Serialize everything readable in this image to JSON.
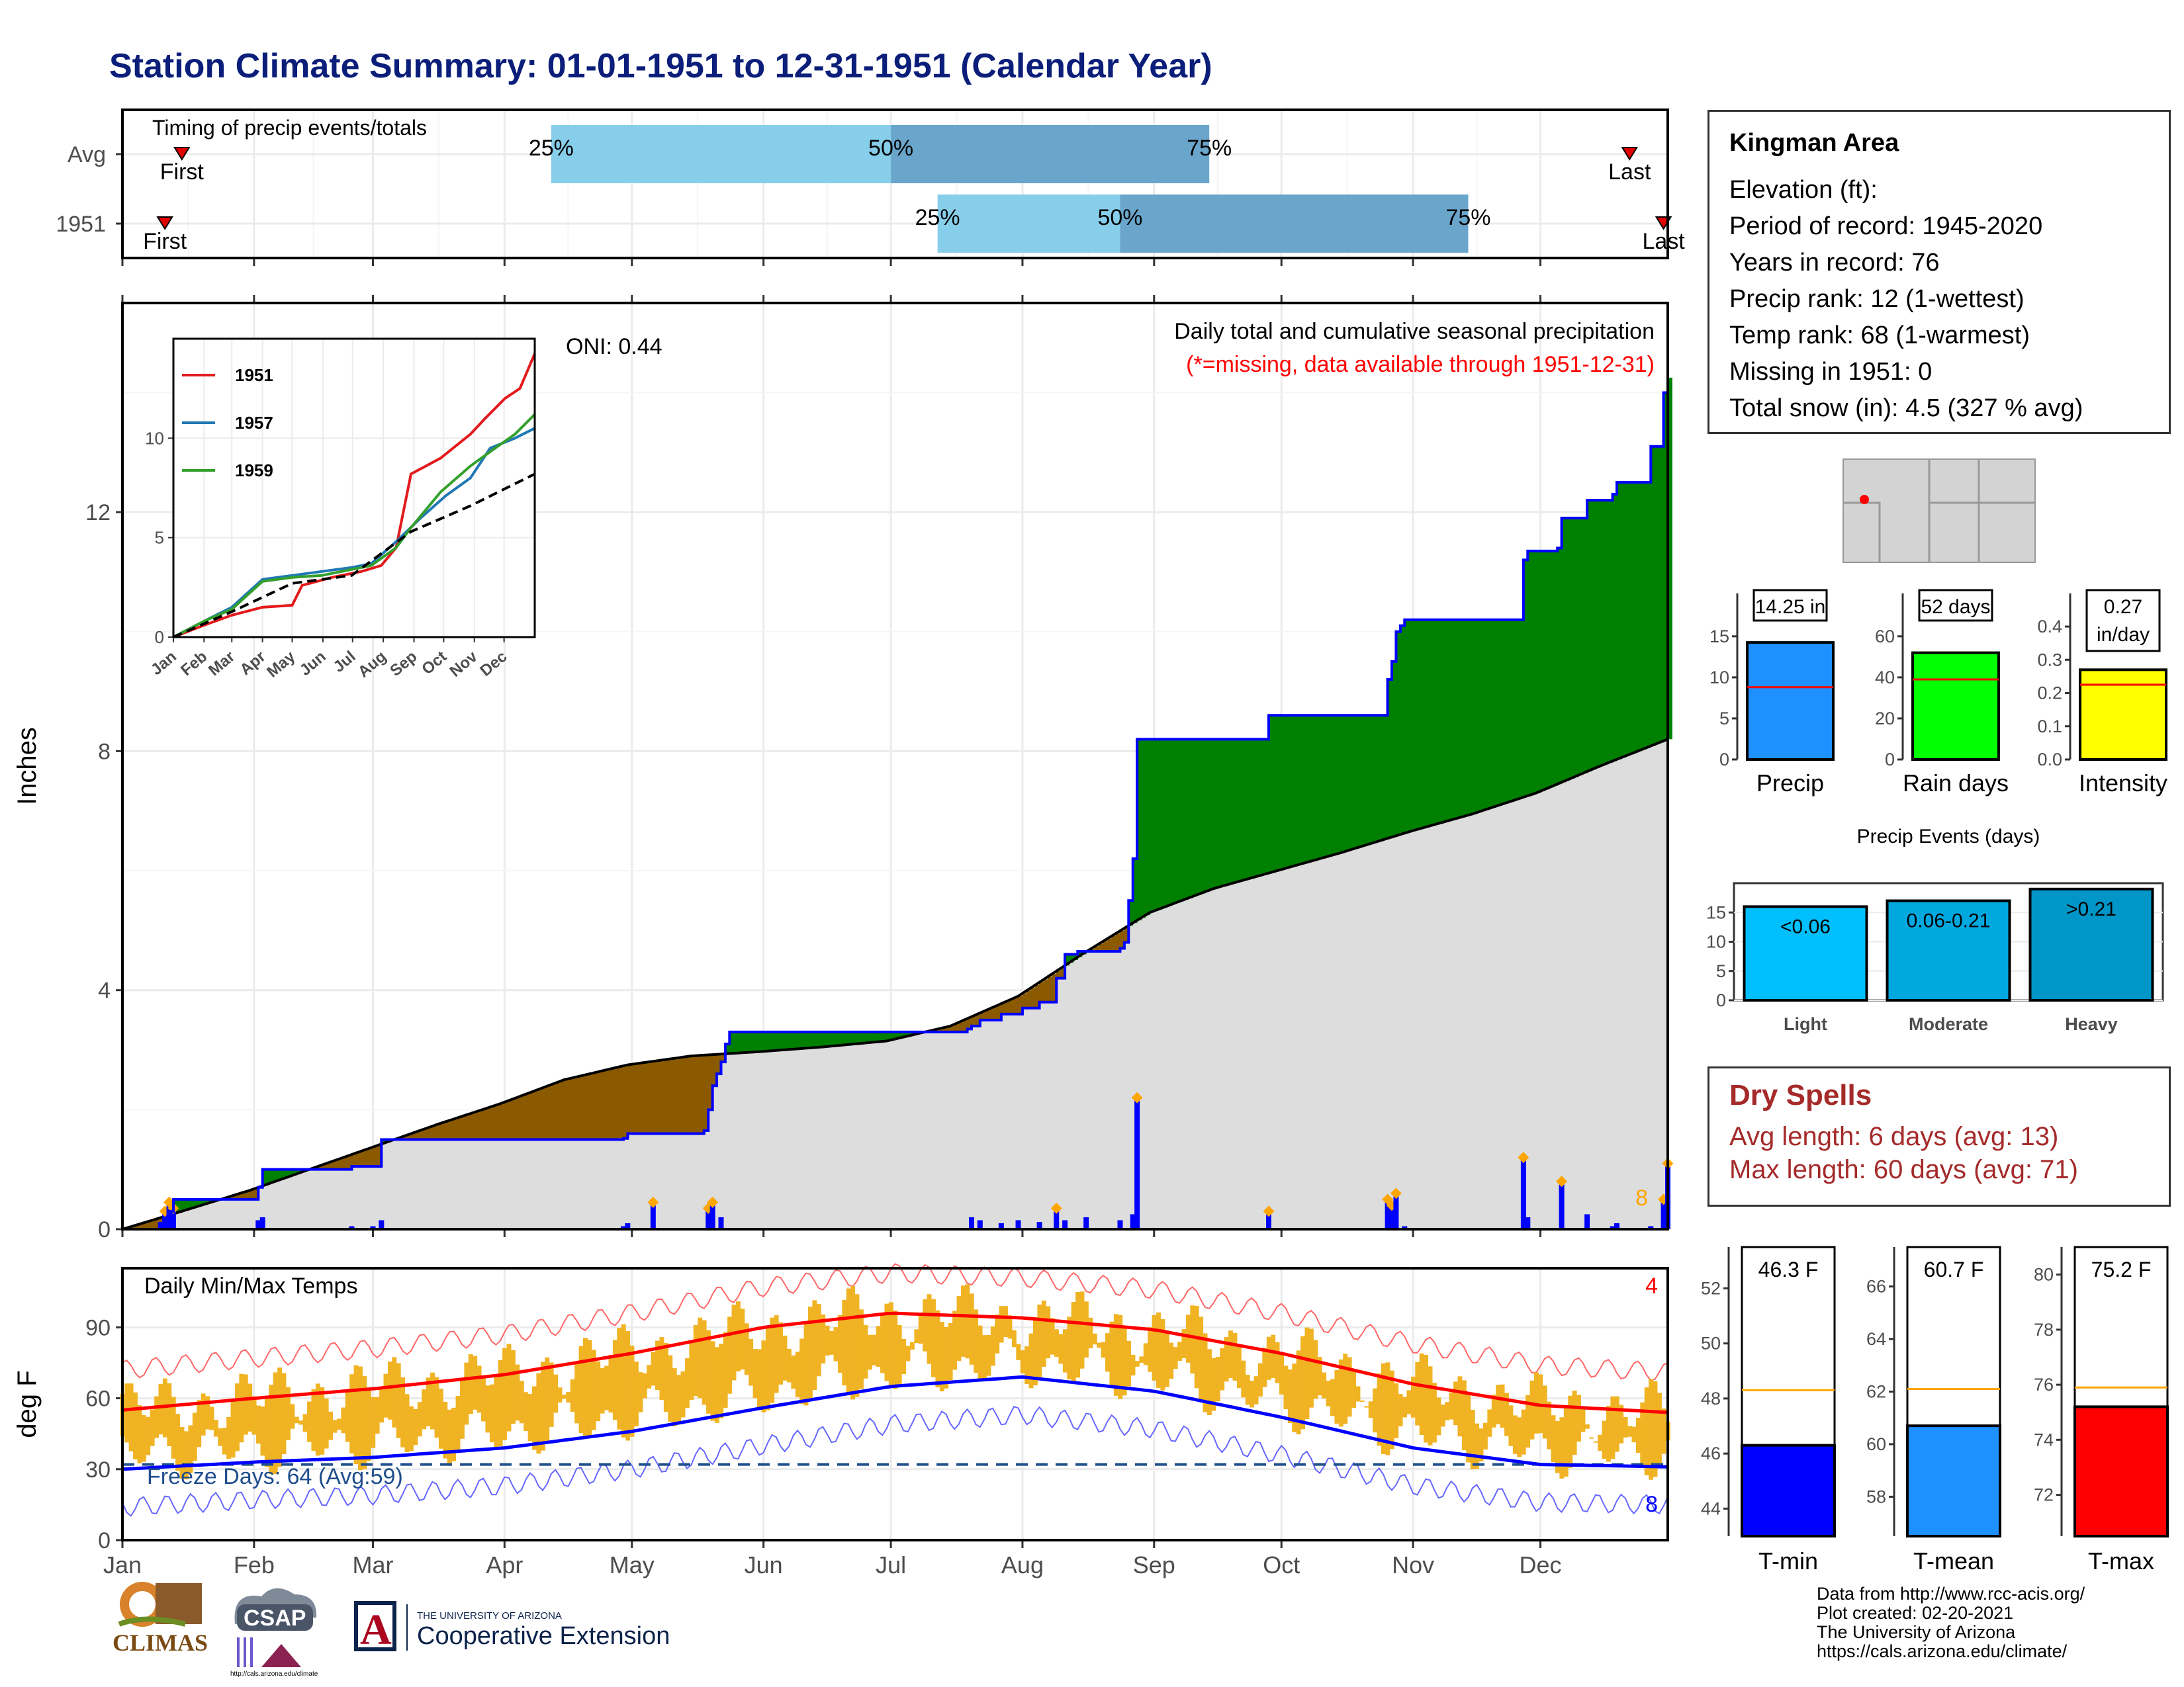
{
  "title": "Station Climate Summary: 01-01-1951 to 12-31-1951 (Calendar Year)",
  "timing": {
    "title": "Timing of precip events/totals",
    "rows": [
      {
        "label": "Avg",
        "first_label": "First",
        "last_label": "Last",
        "first_doy": 15,
        "last_doy": 356,
        "p25": 102,
        "p50": 182,
        "p75": 257,
        "q_labels": [
          "25%",
          "50%",
          "75%"
        ]
      },
      {
        "label": "1951",
        "first_label": "First",
        "last_label": "Last",
        "first_doy": 11,
        "last_doy": 364,
        "p25": 193,
        "p50": 236,
        "p75": 318,
        "q_labels": [
          "25%",
          "50%",
          "75%"
        ]
      }
    ],
    "colors": {
      "light": "#87ceeb",
      "dark": "#6aa6cc",
      "marker": "#e00000"
    }
  },
  "precip": {
    "ylabel": "Inches",
    "yticks": [
      0,
      4,
      8,
      12
    ],
    "ylim": [
      0,
      15.5
    ],
    "legend_title": "Daily total and cumulative seasonal precipitation",
    "missing_note": "(*=missing, data available through 1951-12-31)",
    "oni": "ONI: 0.44",
    "corner_count": "8",
    "colors": {
      "above": "#008000",
      "below": "#8b5a00",
      "avg_fill": "#dddddd",
      "cum_line": "#0000ff",
      "bars": "#0000ff",
      "extreme": "#ffa500"
    }
  },
  "inset": {
    "yticks": [
      0,
      5,
      10
    ],
    "months": [
      "Jan",
      "Feb",
      "Mar",
      "Apr",
      "May",
      "Jun",
      "Jul",
      "Aug",
      "Sep",
      "Oct",
      "Nov",
      "Dec"
    ],
    "series": [
      {
        "name": "1951",
        "color": "#e31a1c"
      },
      {
        "name": "1957",
        "color": "#1f78b4"
      },
      {
        "name": "1959",
        "color": "#33a02c"
      }
    ]
  },
  "temps": {
    "title": "Daily Min/Max Temps",
    "ylabel": "deg F",
    "yticks": [
      0,
      30,
      60,
      90
    ],
    "ylim": [
      0,
      115
    ],
    "freeze_label": "Freeze Days: 64 (Avg:59)",
    "freeze_line": 32,
    "record_high_count": "4",
    "record_low_count": "8",
    "colors": {
      "bars": "#f0b323",
      "avg_max": "#ff0000",
      "avg_min": "#0000ff",
      "rec_max": "#ff6666",
      "rec_min": "#6666ff",
      "freeze": "#1f4e8c"
    }
  },
  "months": [
    "Jan",
    "Feb",
    "Mar",
    "Apr",
    "May",
    "Jun",
    "Jul",
    "Aug",
    "Sep",
    "Oct",
    "Nov",
    "Dec"
  ],
  "info": {
    "station": "Kingman Area",
    "lines": [
      "Elevation (ft):",
      "Period of record: 1945-2020",
      "Years in record: 76",
      "Precip rank: 12 (1-wettest)",
      "Temp rank: 68 (1-warmest)",
      "Missing in 1951: 0",
      "Total snow (in): 4.5 (327 % avg)"
    ]
  },
  "summary_bars": [
    {
      "label": "Precip",
      "value_label": "14.25 in",
      "value": 14.25,
      "avg": 8.8,
      "ymax": 17,
      "ticks": [
        0,
        5,
        10,
        15
      ],
      "color": "#1e90ff"
    },
    {
      "label": "Rain days",
      "value_label": "52 days",
      "value": 52,
      "avg": 39,
      "ymax": 68,
      "ticks": [
        0,
        20,
        40,
        60
      ],
      "color": "#00ff00"
    },
    {
      "label": "Intensity",
      "value_label": "0.27 in/day",
      "value": 0.27,
      "avg": 0.225,
      "ymax": 0.42,
      "ticks": [
        "0.0",
        "0.1",
        "0.2",
        "0.3",
        "0.4"
      ],
      "color": "#ffff00"
    }
  ],
  "events": {
    "title": "Precip Events (days)",
    "ticks": [
      0,
      5,
      10,
      15
    ],
    "ymax": 20,
    "bars": [
      {
        "label": "Light",
        "range": "<0.06",
        "value": 16,
        "color": "#00bfff"
      },
      {
        "label": "Moderate",
        "range": "0.06-0.21",
        "value": 17,
        "color": "#00a8e0"
      },
      {
        "label": "Heavy",
        "range": ">0.21",
        "value": 19,
        "color": "#0096c7"
      }
    ]
  },
  "dry_spells": {
    "title": "Dry Spells",
    "avg": "Avg length: 6 days (avg: 13)",
    "max": "Max length: 60 days (avg: 71)"
  },
  "temp_bars": [
    {
      "label": "T-min",
      "value_label": "46.3 F",
      "value": 46.3,
      "avg": 48.3,
      "ylim": [
        43,
        53.5
      ],
      "ticks": [
        44,
        46,
        48,
        50,
        52
      ],
      "color": "#0000ff"
    },
    {
      "label": "T-mean",
      "value_label": "60.7 F",
      "value": 60.7,
      "avg": 62.1,
      "ylim": [
        56.5,
        67.5
      ],
      "ticks": [
        58,
        60,
        62,
        64,
        66
      ],
      "color": "#1e90ff"
    },
    {
      "label": "T-max",
      "value_label": "75.2 F",
      "value": 75.2,
      "avg": 75.9,
      "ylim": [
        70.5,
        81
      ],
      "ticks": [
        72,
        74,
        76,
        78,
        80
      ],
      "color": "#ff0000"
    }
  ],
  "credits": [
    "Data from http://www.rcc-acis.org/",
    "Plot created: 02-20-2021",
    "The University of Arizona",
    "https://cals.arizona.edu/climate/"
  ],
  "logos": {
    "climas": "CLIMAS",
    "csap": "CSAP",
    "csap_url": "http://cals.arizona.edu/climate",
    "ua_small": "THE UNIVERSITY OF ARIZONA",
    "ua_big": "Cooperative Extension",
    "ua_mark": "A"
  },
  "chart_data": [
    {
      "type": "step-area",
      "title": "Daily total and cumulative seasonal precipitation",
      "ylabel": "Inches",
      "ylim": [
        0,
        15.5
      ],
      "x": "day of year 1951",
      "cumulative_1951": [
        [
          1,
          0
        ],
        [
          10,
          0.1
        ],
        [
          12,
          0.3
        ],
        [
          13,
          0.5
        ],
        [
          32,
          0.5
        ],
        [
          33,
          0.7
        ],
        [
          34,
          1.0
        ],
        [
          55,
          1.05
        ],
        [
          62,
          1.5
        ],
        [
          119,
          1.52
        ],
        [
          120,
          1.6
        ],
        [
          138,
          1.65
        ],
        [
          139,
          2.0
        ],
        [
          140,
          2.4
        ],
        [
          141,
          2.6
        ],
        [
          142,
          2.8
        ],
        [
          143,
          3.1
        ],
        [
          144,
          3.3
        ],
        [
          200,
          3.35
        ],
        [
          201,
          3.4
        ],
        [
          203,
          3.5
        ],
        [
          208,
          3.6
        ],
        [
          213,
          3.7
        ],
        [
          217,
          3.8
        ],
        [
          221,
          4.2
        ],
        [
          223,
          4.6
        ],
        [
          226,
          4.65
        ],
        [
          236,
          4.7
        ],
        [
          237,
          4.8
        ],
        [
          238,
          5.5
        ],
        [
          239,
          6.2
        ],
        [
          240,
          8.2
        ],
        [
          270,
          8.2
        ],
        [
          271,
          8.6
        ],
        [
          298,
          8.6
        ],
        [
          299,
          9.2
        ],
        [
          300,
          9.5
        ],
        [
          301,
          10.0
        ],
        [
          302,
          10.1
        ],
        [
          303,
          10.2
        ],
        [
          330,
          10.2
        ],
        [
          331,
          11.2
        ],
        [
          332,
          11.35
        ],
        [
          339,
          11.4
        ],
        [
          340,
          11.9
        ],
        [
          346,
          12.2
        ],
        [
          352,
          12.3
        ],
        [
          353,
          12.5
        ],
        [
          360,
          12.5
        ],
        [
          361,
          13.1
        ],
        [
          364,
          14.0
        ],
        [
          365,
          14.25
        ]
      ],
      "average_cumulative": [
        [
          1,
          0
        ],
        [
          15,
          0.3
        ],
        [
          31,
          0.65
        ],
        [
          45,
          1.0
        ],
        [
          59,
          1.35
        ],
        [
          75,
          1.75
        ],
        [
          90,
          2.1
        ],
        [
          105,
          2.5
        ],
        [
          120,
          2.75
        ],
        [
          135,
          2.9
        ],
        [
          151,
          2.97
        ],
        [
          166,
          3.05
        ],
        [
          181,
          3.15
        ],
        [
          196,
          3.4
        ],
        [
          212,
          3.9
        ],
        [
          227,
          4.6
        ],
        [
          243,
          5.3
        ],
        [
          258,
          5.7
        ],
        [
          273,
          6.0
        ],
        [
          288,
          6.3
        ],
        [
          304,
          6.65
        ],
        [
          319,
          6.95
        ],
        [
          334,
          7.3
        ],
        [
          349,
          7.75
        ],
        [
          365,
          8.2
        ]
      ],
      "daily_bars": [
        [
          10,
          0.12
        ],
        [
          11,
          0.3
        ],
        [
          12,
          0.45
        ],
        [
          13,
          0.35
        ],
        [
          33,
          0.15
        ],
        [
          34,
          0.2
        ],
        [
          55,
          0.05
        ],
        [
          60,
          0.05
        ],
        [
          62,
          0.15
        ],
        [
          119,
          0.05
        ],
        [
          120,
          0.1
        ],
        [
          126,
          0.45
        ],
        [
          139,
          0.35
        ],
        [
          140,
          0.45
        ],
        [
          142,
          0.2
        ],
        [
          201,
          0.2
        ],
        [
          203,
          0.15
        ],
        [
          208,
          0.1
        ],
        [
          212,
          0.15
        ],
        [
          217,
          0.12
        ],
        [
          221,
          0.35
        ],
        [
          223,
          0.15
        ],
        [
          228,
          0.2
        ],
        [
          236,
          0.15
        ],
        [
          239,
          0.25
        ],
        [
          240,
          2.2
        ],
        [
          271,
          0.3
        ],
        [
          299,
          0.5
        ],
        [
          300,
          0.4
        ],
        [
          301,
          0.6
        ],
        [
          303,
          0.05
        ],
        [
          331,
          1.2
        ],
        [
          332,
          0.2
        ],
        [
          340,
          0.8
        ],
        [
          346,
          0.25
        ],
        [
          352,
          0.05
        ],
        [
          353,
          0.1
        ],
        [
          361,
          0.05
        ],
        [
          364,
          0.5
        ],
        [
          365,
          1.1
        ]
      ]
    },
    {
      "type": "line",
      "title": "",
      "x": "month",
      "ylim": [
        0,
        15
      ],
      "series": [
        {
          "name": "1951",
          "values": [
            [
              0,
              0
            ],
            [
              31,
              0.6
            ],
            [
              59,
              1.1
            ],
            [
              90,
              1.5
            ],
            [
              120,
              1.6
            ],
            [
              130,
              2.6
            ],
            [
              160,
              3.0
            ],
            [
              190,
              3.3
            ],
            [
              210,
              3.6
            ],
            [
              225,
              4.5
            ],
            [
              240,
              8.2
            ],
            [
              270,
              9.0
            ],
            [
              300,
              10.2
            ],
            [
              315,
              11.0
            ],
            [
              335,
              12.0
            ],
            [
              350,
              12.5
            ],
            [
              365,
              14.25
            ]
          ]
        },
        {
          "name": "1957",
          "values": [
            [
              0,
              0
            ],
            [
              31,
              0.8
            ],
            [
              59,
              1.5
            ],
            [
              90,
              2.9
            ],
            [
              120,
              3.1
            ],
            [
              150,
              3.3
            ],
            [
              180,
              3.5
            ],
            [
              200,
              3.7
            ],
            [
              225,
              4.8
            ],
            [
              250,
              6.0
            ],
            [
              275,
              7.1
            ],
            [
              300,
              8.0
            ],
            [
              320,
              9.5
            ],
            [
              345,
              10.0
            ],
            [
              365,
              10.5
            ]
          ]
        },
        {
          "name": "1959",
          "values": [
            [
              0,
              0
            ],
            [
              31,
              0.8
            ],
            [
              59,
              1.4
            ],
            [
              90,
              2.8
            ],
            [
              120,
              3.0
            ],
            [
              150,
              3.1
            ],
            [
              180,
              3.4
            ],
            [
              200,
              3.6
            ],
            [
              225,
              4.5
            ],
            [
              240,
              5.5
            ],
            [
              270,
              7.3
            ],
            [
              300,
              8.6
            ],
            [
              325,
              9.5
            ],
            [
              345,
              10.2
            ],
            [
              365,
              11.2
            ]
          ]
        },
        {
          "name": "",
          "values": [
            [
              0,
              0
            ],
            [
              60,
              1.3
            ],
            [
              120,
              2.7
            ],
            [
              180,
              3.1
            ],
            [
              240,
              5.3
            ],
            [
              300,
              6.6
            ],
            [
              365,
              8.2
            ]
          ]
        }
      ]
    },
    {
      "type": "bar",
      "title": "Daily Min/Max Temps",
      "ylabel": "deg F",
      "ylim": [
        0,
        115
      ],
      "x": "day of year 1951",
      "freeze_threshold": 32,
      "avg_max_by_month": [
        {
          "x": 1,
          "y": 55
        },
        {
          "x": 32,
          "y": 60
        },
        {
          "x": 60,
          "y": 64
        },
        {
          "x": 91,
          "y": 70
        },
        {
          "x": 121,
          "y": 79
        },
        {
          "x": 152,
          "y": 90
        },
        {
          "x": 182,
          "y": 96
        },
        {
          "x": 213,
          "y": 94
        },
        {
          "x": 244,
          "y": 89
        },
        {
          "x": 274,
          "y": 79
        },
        {
          "x": 305,
          "y": 66
        },
        {
          "x": 335,
          "y": 57
        },
        {
          "x": 365,
          "y": 54
        }
      ],
      "avg_min_by_month": [
        {
          "x": 1,
          "y": 30
        },
        {
          "x": 32,
          "y": 33
        },
        {
          "x": 60,
          "y": 35
        },
        {
          "x": 91,
          "y": 39
        },
        {
          "x": 121,
          "y": 46
        },
        {
          "x": 152,
          "y": 56
        },
        {
          "x": 182,
          "y": 65
        },
        {
          "x": 213,
          "y": 69
        },
        {
          "x": 244,
          "y": 63
        },
        {
          "x": 274,
          "y": 52
        },
        {
          "x": 305,
          "y": 39
        },
        {
          "x": 335,
          "y": 32
        },
        {
          "x": 365,
          "y": 31
        }
      ]
    },
    {
      "type": "bar",
      "title": "",
      "categories": [
        "Precip",
        "Rain days",
        "Intensity"
      ],
      "values": [
        14.25,
        52,
        0.27
      ]
    },
    {
      "type": "bar",
      "title": "Precip Events (days)",
      "categories": [
        "Light",
        "Moderate",
        "Heavy"
      ],
      "values": [
        16,
        17,
        19
      ]
    },
    {
      "type": "bar",
      "title": "",
      "categories": [
        "T-min",
        "T-mean",
        "T-max"
      ],
      "values": [
        46.3,
        60.7,
        75.2
      ]
    }
  ]
}
